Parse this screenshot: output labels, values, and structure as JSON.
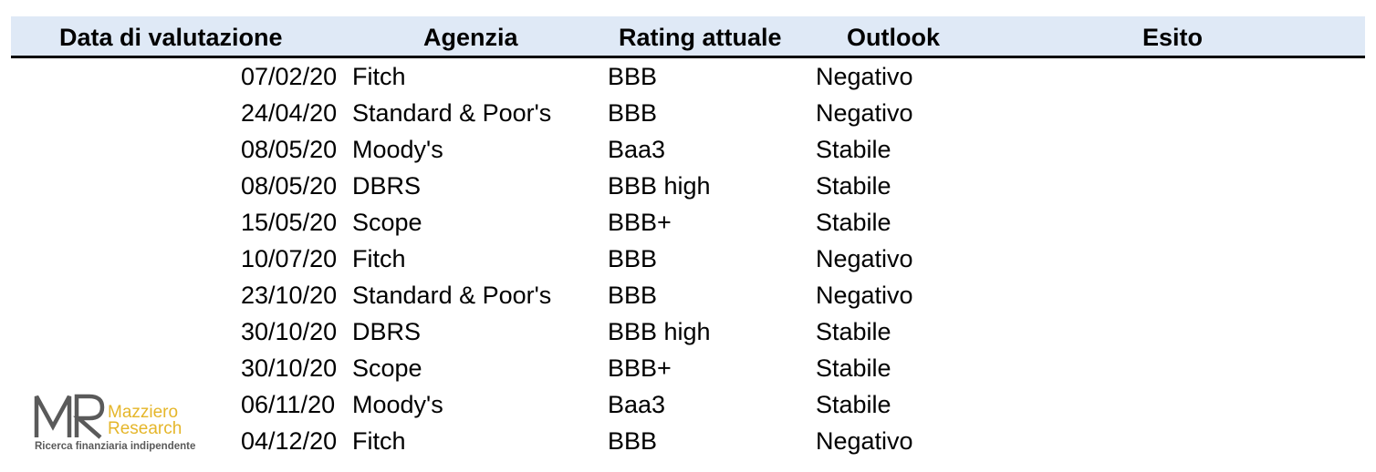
{
  "table": {
    "headers": {
      "date": "Data di valutazione",
      "agency": "Agenzia",
      "rating": "Rating attuale",
      "outlook": "Outlook",
      "result": "Esito"
    },
    "rows": [
      {
        "date": "07/02/20",
        "agency": "Fitch",
        "rating": "BBB",
        "outlook": "Negativo"
      },
      {
        "date": "24/04/20",
        "agency": "Standard & Poor's",
        "rating": "BBB",
        "outlook": "Negativo"
      },
      {
        "date": "08/05/20",
        "agency": "Moody's",
        "rating": "Baa3",
        "outlook": "Stabile"
      },
      {
        "date": "08/05/20",
        "agency": "DBRS",
        "rating": "BBB high",
        "outlook": "Stabile"
      },
      {
        "date": "15/05/20",
        "agency": "Scope",
        "rating": "BBB+",
        "outlook": "Stabile"
      },
      {
        "date": "10/07/20",
        "agency": "Fitch",
        "rating": "BBB",
        "outlook": "Negativo"
      },
      {
        "date": "23/10/20",
        "agency": "Standard & Poor's",
        "rating": "BBB",
        "outlook": "Negativo"
      },
      {
        "date": "30/10/20",
        "agency": "DBRS",
        "rating": "BBB high",
        "outlook": "Stabile"
      },
      {
        "date": "30/10/20",
        "agency": "Scope",
        "rating": "BBB+",
        "outlook": "Stabile"
      },
      {
        "date": "06/11/20",
        "agency": "Moody's",
        "rating": "Baa3",
        "outlook": "Stabile"
      },
      {
        "date": "04/12/20",
        "agency": "Fitch",
        "rating": "BBB",
        "outlook": "Negativo"
      }
    ]
  },
  "logo": {
    "brand_line1": "Mazziero",
    "brand_line2": "Research",
    "tagline": "Ricerca finanziaria indipendente",
    "icon": "mr-monogram-logo"
  },
  "colors": {
    "header_bg": "#dfe9f6",
    "logo_gray": "#5a5a5a",
    "logo_gold": "#e5b62a"
  }
}
